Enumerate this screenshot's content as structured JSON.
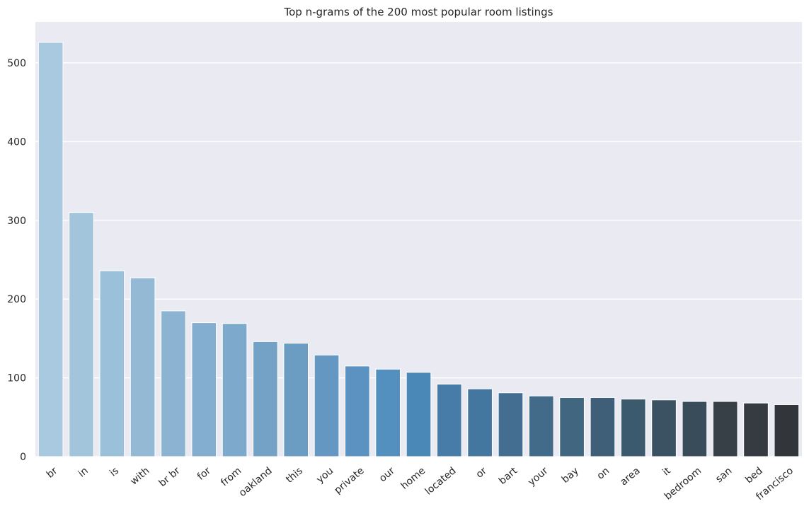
{
  "chart_data": {
    "type": "bar",
    "title": "Top n-grams of the 200 most popular room listings",
    "xlabel": "",
    "ylabel": "",
    "categories": [
      "br",
      "in",
      "is",
      "with",
      "br br",
      "for",
      "from",
      "oakland",
      "this",
      "you",
      "private",
      "our",
      "home",
      "located",
      "or",
      "bart",
      "your",
      "bay",
      "on",
      "area",
      "it",
      "bedroom",
      "san",
      "bed",
      "francisco"
    ],
    "values": [
      526,
      310,
      236,
      227,
      185,
      170,
      169,
      146,
      144,
      129,
      115,
      111,
      107,
      92,
      86,
      81,
      77,
      75,
      75,
      73,
      72,
      70,
      70,
      68,
      66
    ],
    "ylim": [
      0,
      552
    ],
    "yticks": [
      0,
      100,
      200,
      300,
      400,
      500
    ],
    "grid": true,
    "background": "#eaeaf2",
    "colors": [
      "#a8c9df",
      "#a2c5dc",
      "#9bc0da",
      "#94b9d5",
      "#8cb3d1",
      "#84aecf",
      "#7da9cc",
      "#73a2c6",
      "#6b9dc2",
      "#6497c2",
      "#5b92c1",
      "#5390c0",
      "#4a88b8",
      "#477ca8",
      "#44779f",
      "#436e91",
      "#426b8a",
      "#406680",
      "#3e5f77",
      "#3c5a6d",
      "#3b5262",
      "#394c5a",
      "#373f47",
      "#363b42",
      "#32363a"
    ]
  }
}
